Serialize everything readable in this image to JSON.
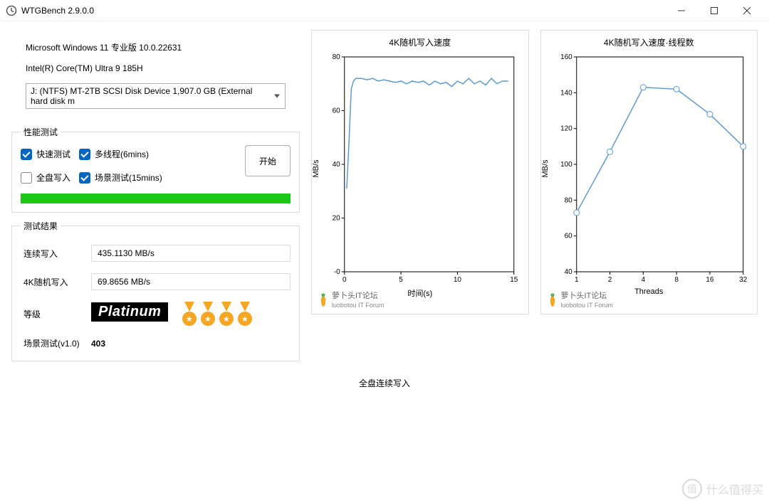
{
  "window": {
    "title": "WTGBench 2.9.0.0",
    "min": "—",
    "max": "▢",
    "close": "✕"
  },
  "sysinfo": {
    "os": "Microsoft Windows 11 专业版 10.0.22631",
    "cpu": "Intel(R) Core(TM) Ultra 9 185H",
    "disk": "J:  (NTFS) MT-2TB  SCSI Disk Device 1,907.0 GB (External hard disk m"
  },
  "perf_group": {
    "legend": "性能测试",
    "quick": "快速测试",
    "multi": "多线程(6mins)",
    "fullwrite": "全盘写入",
    "scene": "场景测试(15mins)",
    "start": "开始",
    "quick_checked": true,
    "multi_checked": true,
    "fullwrite_checked": false,
    "scene_checked": true,
    "progress_color": "#19c819"
  },
  "results": {
    "legend": "测试结果",
    "seq_label": "连续写入",
    "seq_value": "435.1130 MB/s",
    "rnd_label": "4K随机写入",
    "rnd_value": "69.8656 MB/s",
    "grade_label": "等级",
    "grade_value": "Platinum",
    "medal_count": 4,
    "medal_color": "#f5a623",
    "scene_label": "场景测试(v1.0)",
    "scene_value": "403"
  },
  "chart1": {
    "type": "line",
    "title": "4K随机写入速度",
    "ylabel": "MB/s",
    "xlabel": "时间(s)",
    "xlim": [
      0,
      15
    ],
    "ylim": [
      0,
      80
    ],
    "xticks": [
      0,
      5,
      10,
      15
    ],
    "yticks": [
      0,
      20,
      40,
      60,
      80
    ],
    "ytick_labels": [
      "-0",
      "20",
      "40",
      "60",
      "80"
    ],
    "line_color": "#5b9bd5",
    "border_color": "#000000",
    "bg": "#ffffff",
    "points": [
      [
        0.2,
        31
      ],
      [
        0.4,
        48
      ],
      [
        0.6,
        68
      ],
      [
        0.8,
        71
      ],
      [
        1.0,
        72
      ],
      [
        1.5,
        72
      ],
      [
        2.0,
        71.5
      ],
      [
        2.5,
        72
      ],
      [
        3.0,
        71
      ],
      [
        3.5,
        71.5
      ],
      [
        4.0,
        71
      ],
      [
        4.5,
        70.5
      ],
      [
        5.0,
        71
      ],
      [
        5.5,
        70
      ],
      [
        6.0,
        71
      ],
      [
        6.5,
        70.5
      ],
      [
        7.0,
        71
      ],
      [
        7.5,
        69.5
      ],
      [
        8.0,
        71
      ],
      [
        8.5,
        70
      ],
      [
        9.0,
        70.5
      ],
      [
        9.5,
        69
      ],
      [
        10.0,
        71
      ],
      [
        10.5,
        70
      ],
      [
        11.0,
        72
      ],
      [
        11.5,
        70
      ],
      [
        12.0,
        71
      ],
      [
        12.5,
        69.5
      ],
      [
        13.0,
        72
      ],
      [
        13.5,
        70
      ],
      [
        14.0,
        71
      ],
      [
        14.5,
        71
      ]
    ]
  },
  "chart2": {
    "type": "line",
    "title": "4K随机写入速度·线程数",
    "ylabel": "MB/s",
    "xlabel": "Threads",
    "xticks_labels": [
      "1",
      "2",
      "4",
      "8",
      "16",
      "32"
    ],
    "ylim": [
      40,
      160
    ],
    "yticks": [
      40,
      60,
      80,
      100,
      120,
      140,
      160
    ],
    "line_color": "#5b9bd5",
    "marker_color": "#5b9bd5",
    "marker": "circle",
    "border_color": "#000000",
    "bg": "#ffffff",
    "values": [
      73,
      107,
      143,
      142,
      128,
      110
    ]
  },
  "forum": {
    "name_cn": "萝卜头IT论坛",
    "name_en": "luobotou IT Forum",
    "carrot_body": "#f5a623",
    "carrot_leaf": "#4caf50"
  },
  "full_write_label": "全盘连续写入",
  "corner_watermark": "什么值得买"
}
